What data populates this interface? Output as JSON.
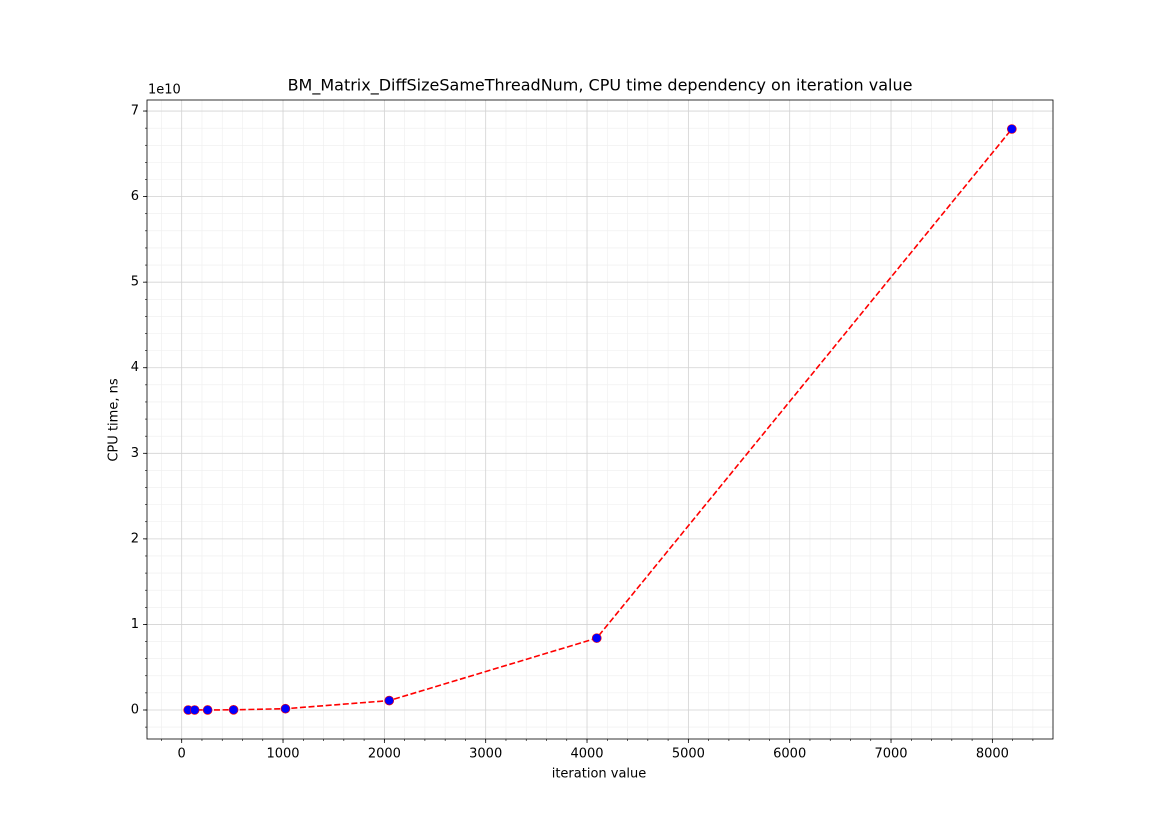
{
  "chart_data": {
    "type": "line",
    "title": "BM_Matrix_DiffSizeSameThreadNum, CPU time dependency on iteration value",
    "x_label": "iteration value",
    "y_label": "CPU time, ns",
    "y_offset_label": "1e10",
    "x": [
      64,
      128,
      256,
      512,
      1024,
      2048,
      4096,
      8192
    ],
    "values": [
      5e-06,
      4e-05,
      0.0003,
      0.002,
      0.015,
      0.11,
      0.84,
      6.79
    ],
    "line_color": "#ff0000",
    "line_style": "dashed",
    "marker_color": "#0000ff",
    "xlim": [
      -342.4,
      8598.4
    ],
    "ylim": [
      -0.339,
      7.129
    ],
    "xticks": [
      0,
      1000,
      2000,
      3000,
      4000,
      5000,
      6000,
      7000,
      8000
    ],
    "yticks": [
      0,
      1,
      2,
      3,
      4,
      5,
      6,
      7
    ],
    "grid": true,
    "minor_grid": true
  }
}
